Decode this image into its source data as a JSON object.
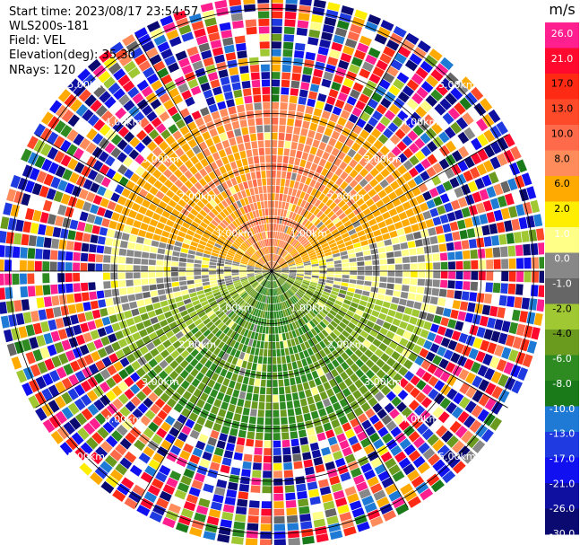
{
  "info": {
    "start_time": "Start time: 2023/08/17 23:54:57",
    "instrument": "WLS200s-181",
    "field": "Field: VEL",
    "elevation": "Elevation(deg): 35.30",
    "nrays": "NRays: 120"
  },
  "colorbar": {
    "unit": "m/s",
    "ticks": [
      "26.0",
      "21.0",
      "17.0",
      "13.0",
      "10.0",
      "8.0",
      "6.0",
      "2.0",
      "1.0",
      "0.0",
      "-1.0",
      "-2.0",
      "-4.0",
      "-6.0",
      "-8.0",
      "-10.0",
      "-13.0",
      "-17.0",
      "-21.0",
      "-26.0",
      "-30.0"
    ],
    "colors": [
      "#ff1f8f",
      "#ff0a2e",
      "#ff2a14",
      "#ff4a2a",
      "#ff6a4a",
      "#ff8c5a",
      "#ffaa00",
      "#ffee00",
      "#ffff88",
      "#888888",
      "#666666",
      "#a0c832",
      "#6a9a1e",
      "#2e8b22",
      "#1a7a1a",
      "#1e7ad4",
      "#1e3ae0",
      "#1010f0",
      "#1010a0",
      "#0a0a70"
    ]
  },
  "chart_data": {
    "type": "heatmap",
    "title": "",
    "field": "VEL",
    "units": "m/s",
    "projection": "PPI polar",
    "nrays": 120,
    "elevation_deg": 35.3,
    "range_ring_labels": [
      "1.00km",
      "2.00km",
      "3.00km",
      "4.00km",
      "5.00km"
    ],
    "range_rings_km": [
      1,
      2,
      3,
      4,
      5
    ],
    "max_range_km": 5.2,
    "spoke_azimuths_deg": [
      0,
      30,
      60,
      90,
      120,
      150,
      180,
      210,
      240,
      270,
      300,
      330
    ],
    "colorscale_bounds": [
      -30,
      -26,
      -21,
      -17,
      -13,
      -10,
      -8,
      -6,
      -4,
      -2,
      -1,
      0,
      1,
      2,
      6,
      8,
      10,
      13,
      17,
      21,
      26
    ],
    "description_regions": [
      {
        "sector": "north",
        "range_km": [
          0,
          3
        ],
        "velocity_range": [
          2,
          10
        ]
      },
      {
        "sector": "south",
        "range_km": [
          0,
          3
        ],
        "velocity_range": [
          -8,
          -2
        ]
      },
      {
        "sector": "all",
        "range_km": [
          3.3,
          5.2
        ],
        "velocity_range": [
          -30,
          26
        ],
        "note": "noise"
      }
    ]
  }
}
